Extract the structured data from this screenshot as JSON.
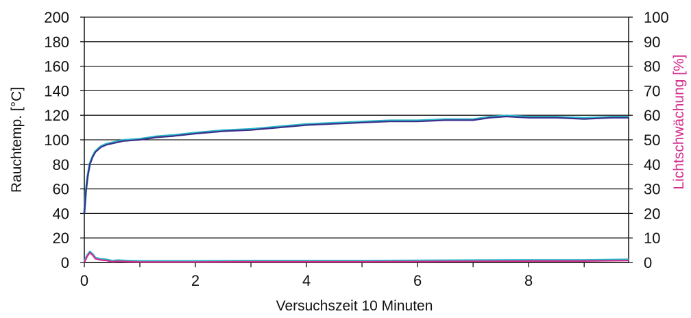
{
  "chart_data": {
    "type": "line",
    "title": "",
    "xlabel": "Versuchszeit 10 Minuten",
    "ylabel": "Rauchtemp. [°C]",
    "y2label": "Lichtschwächung [%]",
    "xlim": [
      0,
      9.8
    ],
    "ylim": [
      0,
      200
    ],
    "y2lim": [
      0,
      100
    ],
    "x_ticks": [
      0,
      2,
      4,
      6,
      8
    ],
    "y_ticks": [
      0,
      20,
      40,
      60,
      80,
      100,
      120,
      140,
      160,
      180,
      200
    ],
    "y2_ticks": [
      0,
      10,
      20,
      30,
      40,
      50,
      60,
      70,
      80,
      90,
      100
    ],
    "grid": "horizontal",
    "legend": "none",
    "colors": {
      "temp_primary": "#3a2f8a",
      "temp_secondary": "#29b9c9",
      "light_primary": "#d42b8c",
      "light_secondary": "#29b9c9",
      "right_axis_label": "#d42b8c",
      "grid": "#1a1a1a"
    },
    "series": [
      {
        "axis": "left",
        "x": [
          0,
          0.03,
          0.06,
          0.1,
          0.15,
          0.2,
          0.3,
          0.4,
          0.5,
          0.7,
          1.0,
          1.3,
          1.6,
          2.0,
          2.5,
          3.0,
          3.5,
          4.0,
          4.5,
          5.0,
          5.5,
          6.0,
          6.5,
          7.0,
          7.3,
          7.6,
          8.0,
          8.5,
          9.0,
          9.5,
          9.8
        ],
        "values": [
          40,
          58,
          70,
          80,
          86,
          90,
          94,
          96,
          97,
          99,
          100,
          102,
          103,
          105,
          107,
          108,
          110,
          112,
          113,
          114,
          115,
          115,
          116,
          116,
          118,
          119,
          118,
          118,
          117,
          118,
          118
        ]
      },
      {
        "axis": "right",
        "x": [
          0,
          0.05,
          0.1,
          0.15,
          0.2,
          0.3,
          0.4,
          0.5,
          0.6,
          0.8,
          1.0,
          1.5,
          2.0,
          3.0,
          4.0,
          5.0,
          6.0,
          7.0,
          8.0,
          9.0,
          9.8
        ],
        "values": [
          0,
          2.5,
          4,
          3,
          1.5,
          1,
          0.8,
          0.3,
          0.5,
          0.3,
          0.2,
          0.2,
          0.2,
          0.3,
          0.3,
          0.3,
          0.4,
          0.5,
          0.6,
          0.6,
          0.8
        ]
      }
    ]
  }
}
